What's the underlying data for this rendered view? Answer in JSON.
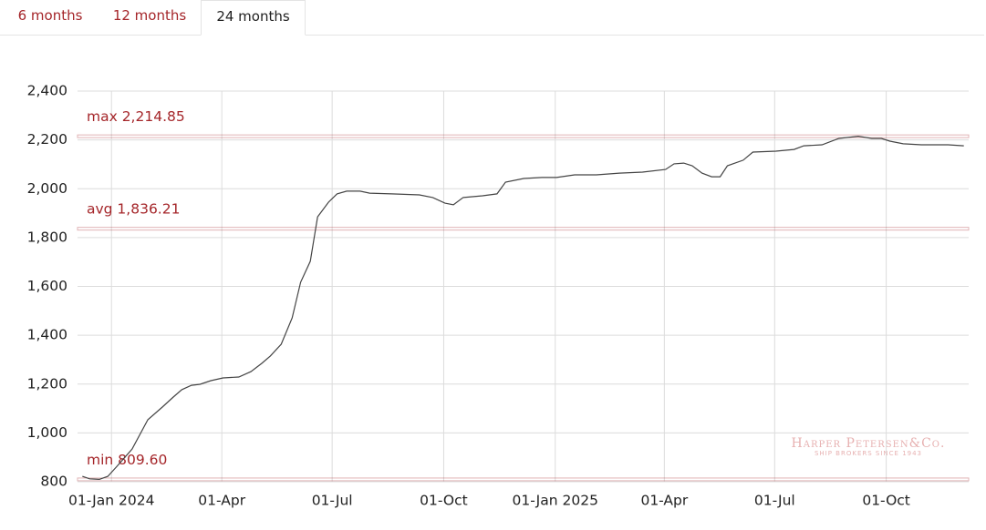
{
  "tabs": [
    "6 months",
    "12 months",
    "24 months"
  ],
  "active_tab": 2,
  "chart_data": {
    "type": "line",
    "x": [
      "2023-12-08",
      "2023-12-14",
      "2023-12-22",
      "2023-12-29",
      "2024-01-05",
      "2024-01-18",
      "2024-01-31",
      "2024-02-12",
      "2024-02-21",
      "2024-02-28",
      "2024-03-07",
      "2024-03-14",
      "2024-03-23",
      "2024-04-02",
      "2024-04-15",
      "2024-04-25",
      "2024-05-04",
      "2024-05-11",
      "2024-05-20",
      "2024-05-29",
      "2024-06-05",
      "2024-06-13",
      "2024-06-19",
      "2024-06-28",
      "2024-07-05",
      "2024-07-13",
      "2024-07-24",
      "2024-08-01",
      "2024-08-19",
      "2024-09-11",
      "2024-09-22",
      "2024-10-02",
      "2024-10-09",
      "2024-10-17",
      "2024-11-02",
      "2024-11-14",
      "2024-11-21",
      "2024-12-06",
      "2024-12-21",
      "2025-01-02",
      "2025-01-17",
      "2025-02-04",
      "2025-02-23",
      "2025-03-14",
      "2025-04-02",
      "2025-04-09",
      "2025-04-17",
      "2025-04-24",
      "2025-05-02",
      "2025-05-10",
      "2025-05-17",
      "2025-05-23",
      "2025-06-05",
      "2025-06-13",
      "2025-07-02",
      "2025-07-17",
      "2025-07-25",
      "2025-08-09",
      "2025-08-23",
      "2025-09-08",
      "2025-09-19",
      "2025-09-27",
      "2025-10-04",
      "2025-10-15",
      "2025-10-30",
      "2025-11-21",
      "2025-12-04"
    ],
    "values": [
      822,
      812,
      809.6,
      822,
      860,
      934,
      1054,
      1106,
      1147,
      1177,
      1195,
      1199,
      1214,
      1225,
      1229,
      1251,
      1285,
      1315,
      1363,
      1471,
      1617,
      1703,
      1885,
      1945,
      1979,
      1990,
      1990,
      1982,
      1979,
      1975,
      1964,
      1941,
      1934,
      1964,
      1971,
      1979,
      2027,
      2042,
      2046,
      2046,
      2057,
      2057,
      2064,
      2068,
      2079,
      2102,
      2105,
      2094,
      2064,
      2049,
      2049,
      2094,
      2117,
      2150,
      2154,
      2161,
      2176,
      2180,
      2206,
      2214.85,
      2206,
      2206,
      2195,
      2184,
      2180,
      2180,
      2176
    ],
    "color": "#444444",
    "xlim": [
      "2023-12-04",
      "2025-12-08"
    ],
    "xticks": [
      {
        "value": "2024-01-01",
        "label": "01-Jan 2024"
      },
      {
        "value": "2024-04-01",
        "label": "01-Apr"
      },
      {
        "value": "2024-07-01",
        "label": "01-Jul"
      },
      {
        "value": "2024-10-01",
        "label": "01-Oct"
      },
      {
        "value": "2025-01-01",
        "label": "01-Jan 2025"
      },
      {
        "value": "2025-04-01",
        "label": "01-Apr"
      },
      {
        "value": "2025-07-01",
        "label": "01-Jul"
      },
      {
        "value": "2025-10-01",
        "label": "01-Oct"
      }
    ],
    "ylim": [
      800,
      2400
    ],
    "yticks": [
      {
        "value": 800,
        "label": "800"
      },
      {
        "value": 1000,
        "label": "1,000"
      },
      {
        "value": 1200,
        "label": "1,200"
      },
      {
        "value": 1400,
        "label": "1,400"
      },
      {
        "value": 1600,
        "label": "1,600"
      },
      {
        "value": 1800,
        "label": "1,800"
      },
      {
        "value": 2000,
        "label": "2,000"
      },
      {
        "value": 2200,
        "label": "2,200"
      },
      {
        "value": 2400,
        "label": "2,400"
      }
    ],
    "grid": true,
    "reference_lines": [
      {
        "label": "max 2,214.85",
        "value": 2214.85
      },
      {
        "label": "avg 1,836.21",
        "value": 1836.21
      },
      {
        "label": "min 809.60",
        "value": 809.6
      }
    ],
    "reference_color": "#a5262a",
    "watermark": {
      "name": "Harper Petersen&Co.",
      "tagline": "SHIP BROKERS SINCE 1943"
    }
  }
}
